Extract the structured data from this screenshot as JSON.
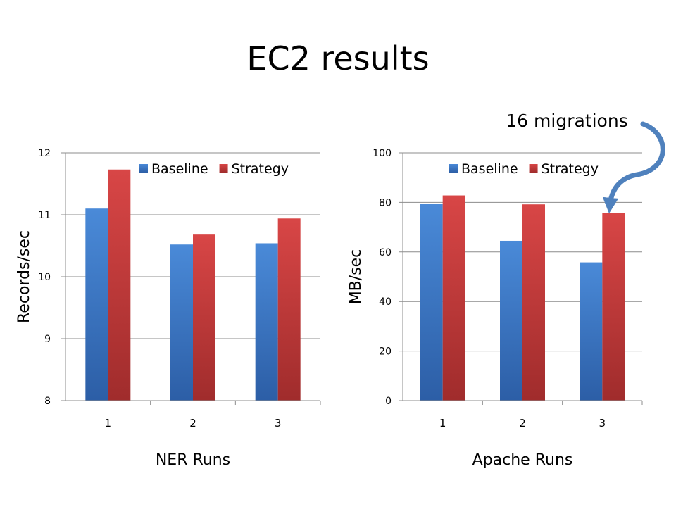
{
  "slide": {
    "title": "EC2 results",
    "annotation": "16 migrations"
  },
  "chart_data": [
    {
      "type": "bar",
      "categories": [
        "1",
        "2",
        "3"
      ],
      "series": [
        {
          "name": "Baseline",
          "values": [
            11.1,
            10.52,
            10.54
          ],
          "color": "#3c78c8"
        },
        {
          "name": "Strategy",
          "values": [
            11.73,
            10.68,
            10.94
          ],
          "color": "#c63c3c"
        }
      ],
      "xlabel": "NER Runs",
      "ylabel": "Records/sec",
      "ylim": [
        8,
        12
      ],
      "yticks": [
        8,
        9,
        10,
        11,
        12
      ],
      "grid": true,
      "legend": "top"
    },
    {
      "type": "bar",
      "categories": [
        "1",
        "2",
        "3"
      ],
      "series": [
        {
          "name": "Baseline",
          "values": [
            79.5,
            64.5,
            55.8
          ],
          "color": "#3c78c8"
        },
        {
          "name": "Strategy",
          "values": [
            82.8,
            79.2,
            75.8
          ],
          "color": "#c63c3c"
        }
      ],
      "xlabel": "Apache Runs",
      "ylabel": "MB/sec",
      "ylim": [
        0,
        100
      ],
      "yticks": [
        0,
        20,
        40,
        60,
        80,
        100
      ],
      "grid": true,
      "legend": "top"
    }
  ],
  "colors": {
    "arrow": "#4f81bd",
    "grid": "#8c8c8c"
  }
}
